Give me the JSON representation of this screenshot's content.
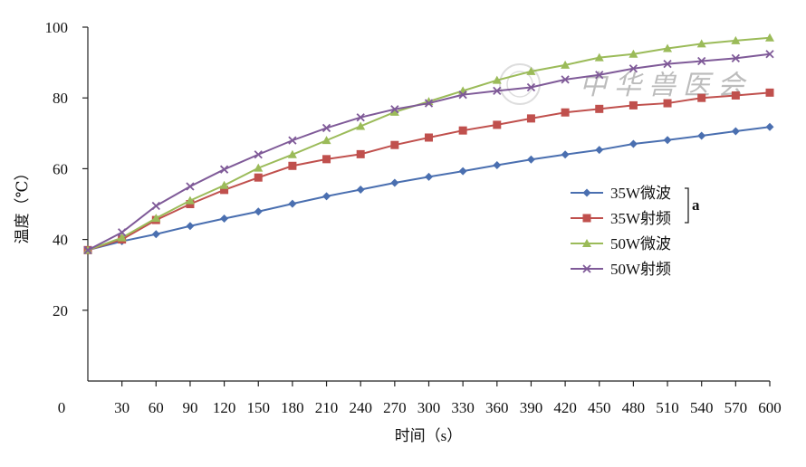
{
  "chart_data": {
    "type": "line",
    "title": "",
    "xlabel": "时间（s）",
    "ylabel": "温度（℃）",
    "x": [
      0,
      30,
      60,
      90,
      120,
      150,
      180,
      210,
      240,
      270,
      300,
      330,
      360,
      390,
      420,
      450,
      480,
      510,
      540,
      570,
      600
    ],
    "x_tick_labels": [
      "0",
      "30",
      "60",
      "90",
      "120",
      "150",
      "180",
      "210",
      "240",
      "270",
      "300",
      "330",
      "360",
      "390",
      "420",
      "450",
      "480",
      "510",
      "540",
      "570",
      "600"
    ],
    "y_ticks": [
      20,
      40,
      60,
      80,
      100
    ],
    "xlim": [
      0,
      600
    ],
    "ylim": [
      0,
      100
    ],
    "grid": false,
    "legend_position": "right",
    "legend_bracket_label": "a",
    "series": [
      {
        "name": "35W微波",
        "color": "#4a6fb0",
        "marker": "diamond",
        "values": [
          37,
          39.5,
          41.5,
          43.8,
          45.9,
          47.9,
          50.1,
          52.2,
          54.1,
          56.0,
          57.7,
          59.3,
          61.0,
          62.6,
          64.0,
          65.3,
          67.0,
          68.1,
          69.3,
          70.6,
          71.8
        ]
      },
      {
        "name": "35W射频",
        "color": "#c0504d",
        "marker": "square",
        "values": [
          37,
          40.0,
          45.5,
          50.0,
          54.0,
          57.5,
          60.8,
          62.7,
          64.1,
          66.7,
          68.8,
          70.8,
          72.4,
          74.2,
          75.9,
          76.9,
          77.9,
          78.5,
          80.0,
          80.7,
          81.5
        ]
      },
      {
        "name": "50W微波",
        "color": "#9bbb59",
        "marker": "triangle",
        "values": [
          37,
          40.5,
          46.0,
          51.0,
          55.3,
          60.2,
          64.0,
          68.0,
          72.0,
          76.0,
          79.0,
          82.0,
          85.0,
          87.5,
          89.3,
          91.4,
          92.4,
          94.0,
          95.3,
          96.2,
          97.0
        ]
      },
      {
        "name": "50W射频",
        "color": "#7f5a98",
        "marker": "x",
        "values": [
          37,
          42.0,
          49.5,
          55.0,
          59.8,
          64.0,
          68.0,
          71.5,
          74.5,
          76.8,
          78.5,
          80.9,
          82.0,
          83.0,
          85.2,
          86.5,
          88.3,
          89.6,
          90.4,
          91.2,
          92.4
        ]
      }
    ]
  },
  "watermark_text": "中华兽医会"
}
